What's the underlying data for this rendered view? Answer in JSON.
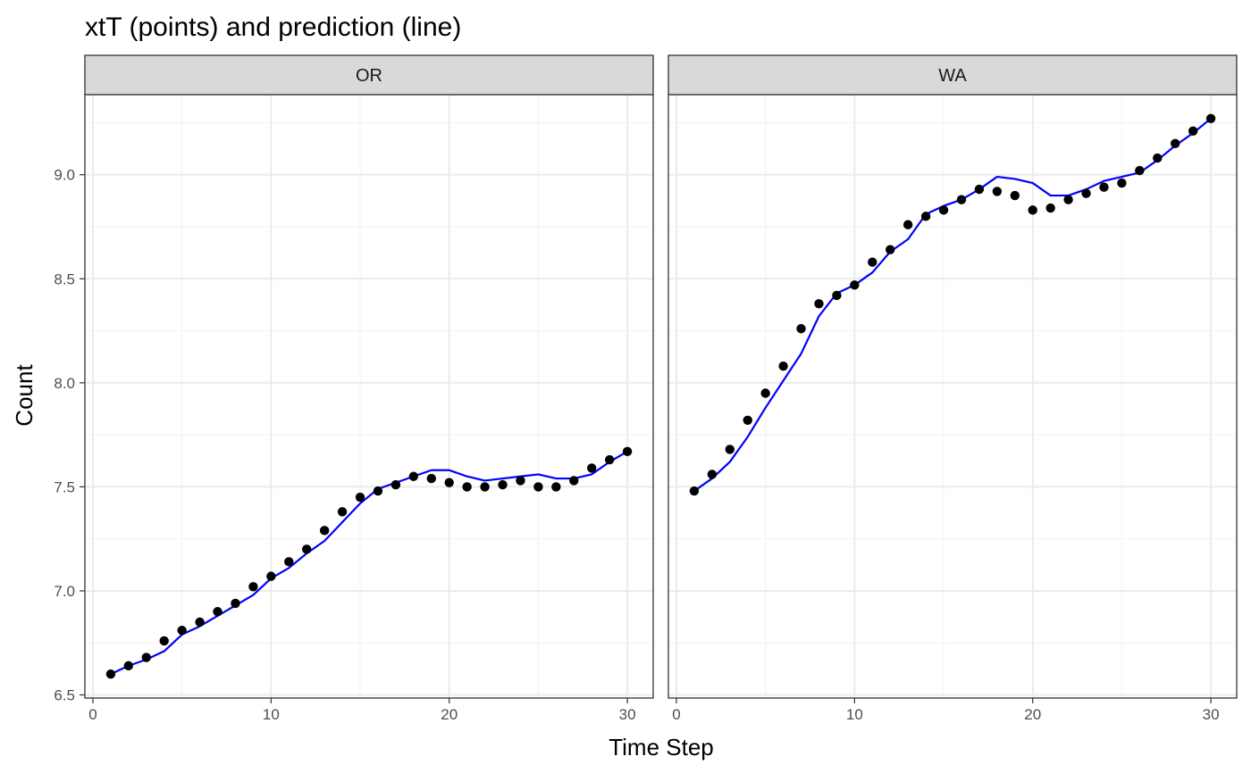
{
  "chart_data": {
    "type": "scatter",
    "title": "xtT (points) and prediction (line)",
    "xlabel": "Time Step",
    "ylabel": "Count",
    "xlim": [
      -0.45,
      31.45
    ],
    "ylim": [
      6.485,
      9.385
    ],
    "x_ticks": [
      0,
      10,
      20,
      30
    ],
    "y_ticks": [
      6.5,
      7.0,
      7.5,
      8.0,
      8.5,
      9.0
    ],
    "x_tick_labels": [
      "0",
      "10",
      "20",
      "30"
    ],
    "y_tick_labels": [
      "6.5",
      "7.0",
      "7.5",
      "8.0",
      "8.5",
      "9.0"
    ],
    "grid": true,
    "colors": {
      "points": "#000000",
      "line": "#0000ff",
      "strip": "#d9d9d9"
    },
    "x": [
      1,
      2,
      3,
      4,
      5,
      6,
      7,
      8,
      9,
      10,
      11,
      12,
      13,
      14,
      15,
      16,
      17,
      18,
      19,
      20,
      21,
      22,
      23,
      24,
      25,
      26,
      27,
      28,
      29,
      30
    ],
    "panels": [
      {
        "label": "OR",
        "points": [
          6.6,
          6.64,
          6.68,
          6.76,
          6.81,
          6.85,
          6.9,
          6.94,
          7.02,
          7.07,
          7.14,
          7.2,
          7.29,
          7.38,
          7.45,
          7.48,
          7.51,
          7.55,
          7.54,
          7.52,
          7.5,
          7.5,
          7.51,
          7.53,
          7.5,
          7.5,
          7.53,
          7.59,
          7.63,
          7.67
        ],
        "prediction": [
          6.6,
          6.64,
          6.67,
          6.71,
          6.79,
          6.83,
          6.88,
          6.93,
          6.98,
          7.06,
          7.11,
          7.18,
          7.24,
          7.33,
          7.42,
          7.49,
          7.52,
          7.55,
          7.58,
          7.58,
          7.55,
          7.53,
          7.54,
          7.55,
          7.56,
          7.54,
          7.54,
          7.56,
          7.62,
          7.67
        ]
      },
      {
        "label": "WA",
        "points": [
          7.48,
          7.56,
          7.68,
          7.82,
          7.95,
          8.08,
          8.26,
          8.38,
          8.42,
          8.47,
          8.58,
          8.64,
          8.76,
          8.8,
          8.83,
          8.88,
          8.93,
          8.92,
          8.9,
          8.83,
          8.84,
          8.88,
          8.91,
          8.94,
          8.96,
          9.02,
          9.08,
          9.15,
          9.21,
          9.27
        ],
        "prediction": [
          7.48,
          7.54,
          7.62,
          7.74,
          7.88,
          8.01,
          8.14,
          8.32,
          8.43,
          8.47,
          8.53,
          8.63,
          8.69,
          8.81,
          8.85,
          8.88,
          8.93,
          8.99,
          8.98,
          8.96,
          8.9,
          8.9,
          8.93,
          8.97,
          8.99,
          9.01,
          9.07,
          9.14,
          9.2,
          9.27
        ]
      }
    ]
  }
}
